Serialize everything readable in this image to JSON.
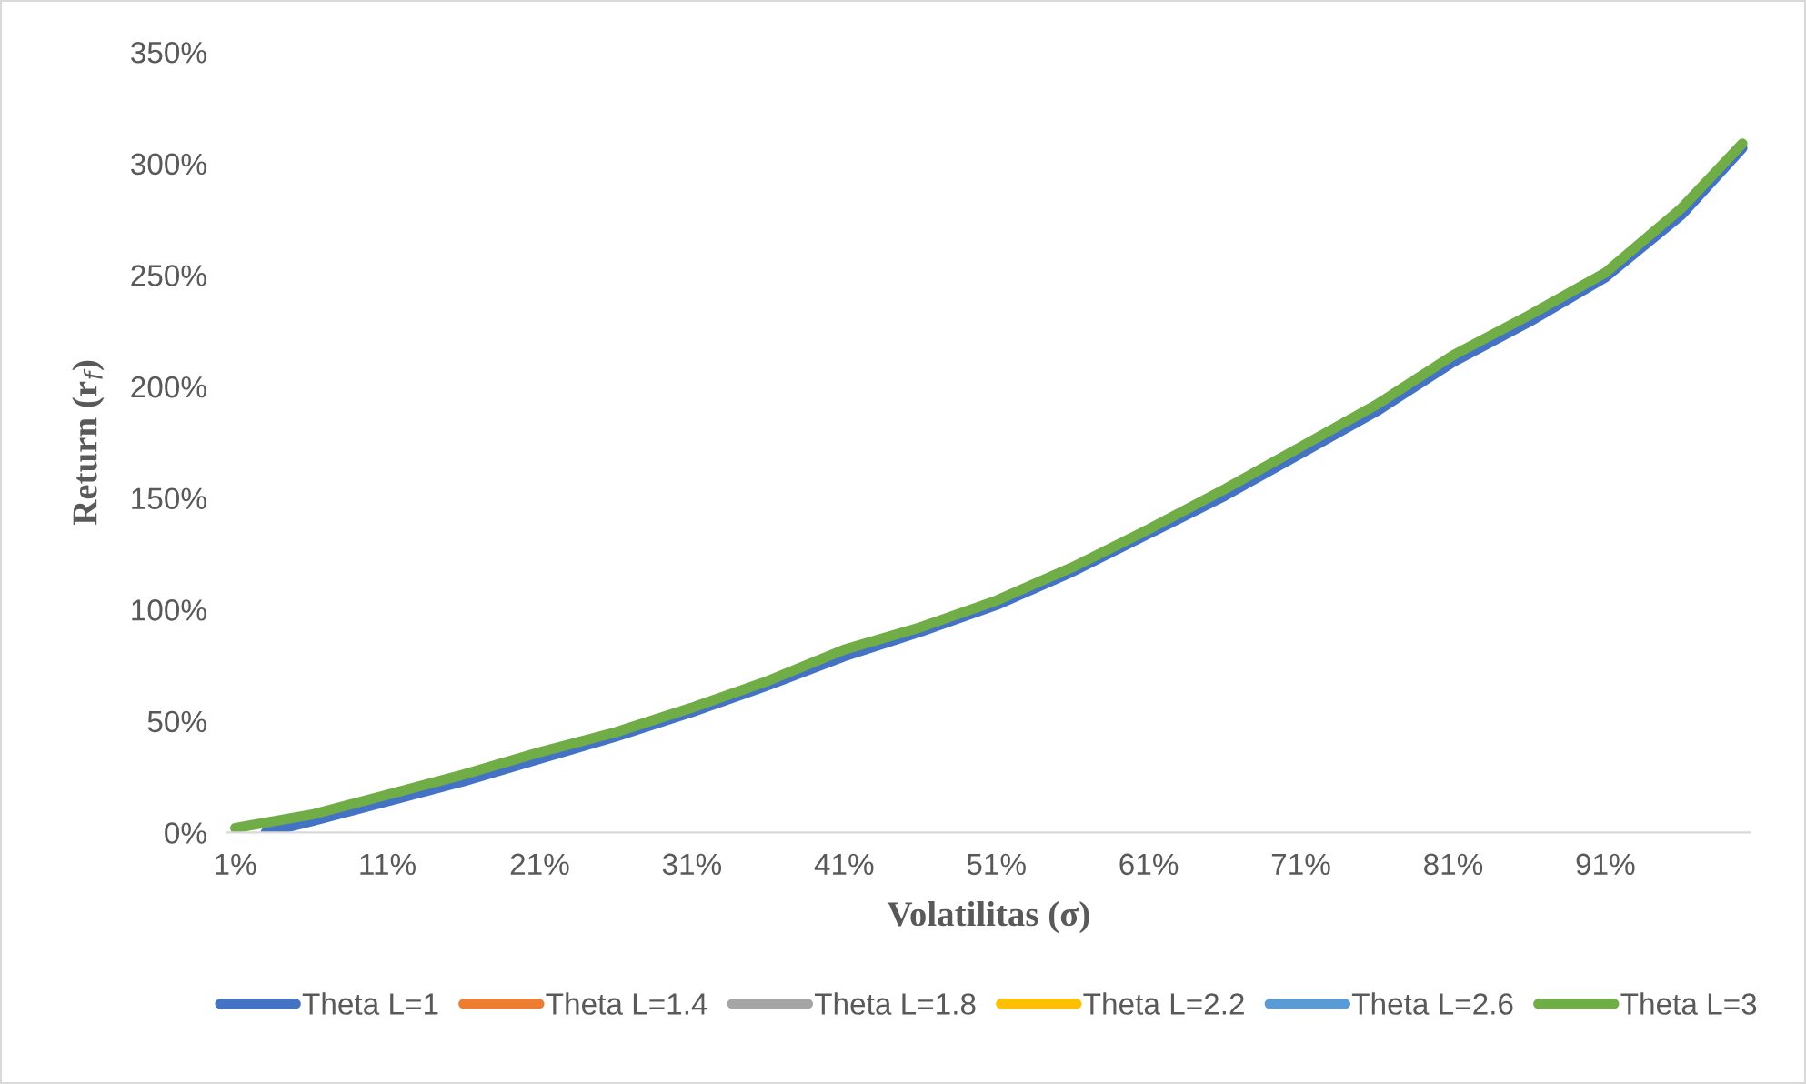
{
  "chart_data": {
    "type": "line",
    "xlabel": "Volatilitas (σ)",
    "ylabel": "Return (r$_{f}$)",
    "x": [
      1,
      6,
      11,
      16,
      21,
      26,
      31,
      36,
      41,
      46,
      51,
      56,
      61,
      66,
      71,
      76,
      81,
      86,
      91,
      96,
      100
    ],
    "xlim": [
      0.5,
      100.5
    ],
    "xticks": [
      {
        "value": 1,
        "label": "1%"
      },
      {
        "value": 11,
        "label": "11%"
      },
      {
        "value": 21,
        "label": "21%"
      },
      {
        "value": 31,
        "label": "31%"
      },
      {
        "value": 41,
        "label": "41%"
      },
      {
        "value": 51,
        "label": "51%"
      },
      {
        "value": 61,
        "label": "61%"
      },
      {
        "value": 71,
        "label": "71%"
      },
      {
        "value": 81,
        "label": "81%"
      },
      {
        "value": 91,
        "label": "91%"
      }
    ],
    "ylim": [
      0,
      350
    ],
    "yticks": [
      {
        "value": 0,
        "label": "0%"
      },
      {
        "value": 50,
        "label": "50%"
      },
      {
        "value": 100,
        "label": "100%"
      },
      {
        "value": 150,
        "label": "150%"
      },
      {
        "value": 200,
        "label": "200%"
      },
      {
        "value": 250,
        "label": "250%"
      },
      {
        "value": 300,
        "label": "300%"
      },
      {
        "value": 350,
        "label": "350%"
      }
    ],
    "grid": false,
    "legend": "bottom",
    "line_style": "solid",
    "marker": "none",
    "series": [
      {
        "name": "Theta L=1",
        "color": "#4472c4",
        "x": [
          3,
          6,
          11,
          16,
          21,
          26,
          31,
          36,
          41,
          46,
          51,
          56,
          61,
          66,
          71,
          76,
          81,
          86,
          91,
          96,
          100
        ],
        "values": [
          0,
          5,
          14,
          23,
          33,
          43,
          54,
          66,
          79,
          90,
          102,
          117,
          134,
          151,
          170,
          189,
          211,
          229,
          249,
          277,
          307
        ]
      },
      {
        "name": "Theta L=1.4",
        "color": "#ed7d31",
        "values": [
          null,
          null,
          null,
          null,
          null,
          null,
          null,
          null,
          null,
          null,
          null,
          null,
          null,
          null,
          null,
          null,
          null,
          null,
          null,
          null,
          null
        ]
      },
      {
        "name": "Theta L=1.8",
        "color": "#a5a5a5",
        "values": [
          null,
          null,
          null,
          null,
          null,
          null,
          null,
          null,
          null,
          null,
          null,
          null,
          null,
          null,
          null,
          null,
          null,
          null,
          null,
          null,
          null
        ]
      },
      {
        "name": "Theta L=2.2",
        "color": "#ffc000",
        "values": [
          null,
          null,
          null,
          null,
          null,
          null,
          null,
          null,
          null,
          null,
          null,
          null,
          null,
          null,
          null,
          null,
          null,
          null,
          null,
          null,
          null
        ]
      },
      {
        "name": "Theta L=2.6",
        "color": "#5b9bd5",
        "values": [
          null,
          null,
          null,
          null,
          null,
          null,
          null,
          null,
          null,
          null,
          null,
          null,
          null,
          null,
          null,
          null,
          null,
          null,
          null,
          null,
          null
        ]
      },
      {
        "name": "Theta L=3",
        "color": "#70ad47",
        "values": [
          2,
          8,
          17,
          26,
          36,
          45,
          56,
          68,
          82,
          92,
          104,
          119,
          136,
          154,
          173,
          192,
          214,
          232,
          251,
          280,
          309
        ]
      }
    ]
  }
}
